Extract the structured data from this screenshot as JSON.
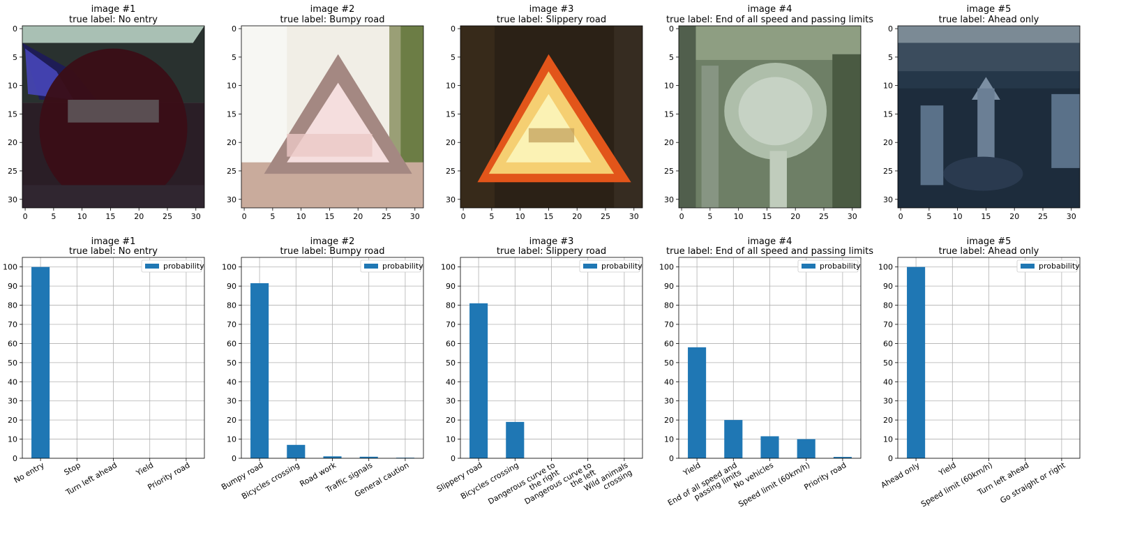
{
  "charts": [
    {
      "id": 1,
      "image_title": [
        "image #1",
        "true label: No entry"
      ],
      "bar_title": [
        "image #1",
        "true label: No entry"
      ],
      "scene": "noentry",
      "bar_color": "#1f77b4",
      "legend_label": "probability",
      "categories": [
        "No entry",
        "Stop",
        "Turn left ahead",
        "Yield",
        "Priority road"
      ],
      "values": [
        100,
        0,
        0,
        0,
        0
      ]
    },
    {
      "id": 2,
      "image_title": [
        "image #2",
        "true label: Bumpy road"
      ],
      "bar_title": [
        "image #2",
        "true label: Bumpy road"
      ],
      "scene": "bumpy",
      "bar_color": "#1f77b4",
      "legend_label": "probability",
      "categories": [
        "Bumpy road",
        "Bicycles crossing",
        "Road work",
        "Traffic signals",
        "General caution"
      ],
      "values": [
        91.5,
        7,
        1,
        0.8,
        0.3
      ]
    },
    {
      "id": 3,
      "image_title": [
        "image #3",
        "true label: Slippery road"
      ],
      "bar_title": [
        "image #3",
        "true label: Slippery road"
      ],
      "scene": "slippery",
      "bar_color": "#1f77b4",
      "legend_label": "probability",
      "categories": [
        "Slippery road",
        "Bicycles crossing",
        "Dangerous curve to|the right",
        "Dangerous curve to|the left",
        "Wild animals|crossing"
      ],
      "values": [
        81,
        19,
        0,
        0,
        0
      ]
    },
    {
      "id": 4,
      "image_title": [
        "image #4",
        "true label: End of all speed and passing limits"
      ],
      "bar_title": [
        "image #4",
        "true label: End of all speed and passing limits"
      ],
      "scene": "endlimits",
      "bar_color": "#1f77b4",
      "legend_label": "probability",
      "categories": [
        "Yield",
        "End of all speed and|passing limits",
        "No vehicles",
        "Speed limit (60km/h)",
        "Priority road"
      ],
      "values": [
        58,
        20,
        11.5,
        10,
        0.7
      ]
    },
    {
      "id": 5,
      "image_title": [
        "image #5",
        "true label: Ahead only"
      ],
      "bar_title": [
        "image #5",
        "true label: Ahead only"
      ],
      "scene": "ahead",
      "bar_color": "#1f77b4",
      "legend_label": "probability",
      "categories": [
        "Ahead only",
        "Yield",
        "Speed limit (60km/h)",
        "Turn left ahead",
        "Go straight or right"
      ],
      "values": [
        100,
        0,
        0,
        0,
        0
      ]
    }
  ],
  "chart_data": [
    {
      "type": "bar",
      "title": "image #1 true label: No entry",
      "categories": [
        "No entry",
        "Stop",
        "Turn left ahead",
        "Yield",
        "Priority road"
      ],
      "series": [
        {
          "name": "probability",
          "values": [
            100,
            0,
            0,
            0,
            0
          ]
        }
      ],
      "ylim": [
        0,
        105
      ],
      "grid": true,
      "legend": "top-right"
    },
    {
      "type": "bar",
      "title": "image #2 true label: Bumpy road",
      "categories": [
        "Bumpy road",
        "Bicycles crossing",
        "Road work",
        "Traffic signals",
        "General caution"
      ],
      "series": [
        {
          "name": "probability",
          "values": [
            91.5,
            7,
            1,
            0.8,
            0.3
          ]
        }
      ],
      "ylim": [
        0,
        105
      ],
      "grid": true,
      "legend": "top-right"
    },
    {
      "type": "bar",
      "title": "image #3 true label: Slippery road",
      "categories": [
        "Slippery road",
        "Bicycles crossing",
        "Dangerous curve to the right",
        "Dangerous curve to the left",
        "Wild animals crossing"
      ],
      "series": [
        {
          "name": "probability",
          "values": [
            81,
            19,
            0,
            0,
            0
          ]
        }
      ],
      "ylim": [
        0,
        105
      ],
      "grid": true,
      "legend": "top-right"
    },
    {
      "type": "bar",
      "title": "image #4 true label: End of all speed and passing limits",
      "categories": [
        "Yield",
        "End of all speed and passing limits",
        "No vehicles",
        "Speed limit (60km/h)",
        "Priority road"
      ],
      "series": [
        {
          "name": "probability",
          "values": [
            58,
            20,
            11.5,
            10,
            0.7
          ]
        }
      ],
      "ylim": [
        0,
        105
      ],
      "grid": true,
      "legend": "top-right"
    },
    {
      "type": "bar",
      "title": "image #5 true label: Ahead only",
      "categories": [
        "Ahead only",
        "Yield",
        "Speed limit (60km/h)",
        "Turn left ahead",
        "Go straight or right"
      ],
      "series": [
        {
          "name": "probability",
          "values": [
            100,
            0,
            0,
            0,
            0
          ]
        }
      ],
      "ylim": [
        0,
        105
      ],
      "grid": true,
      "legend": "top-right"
    }
  ],
  "image_axis": {
    "x_ticks": [
      0,
      5,
      10,
      15,
      20,
      25,
      30
    ],
    "y_ticks": [
      0,
      5,
      10,
      15,
      20,
      25,
      30
    ],
    "range": [
      -0.5,
      31.5
    ]
  },
  "bar_axis": {
    "y_ticks": [
      0,
      10,
      20,
      30,
      40,
      50,
      60,
      70,
      80,
      90,
      100
    ],
    "ylim": [
      0,
      105
    ]
  }
}
